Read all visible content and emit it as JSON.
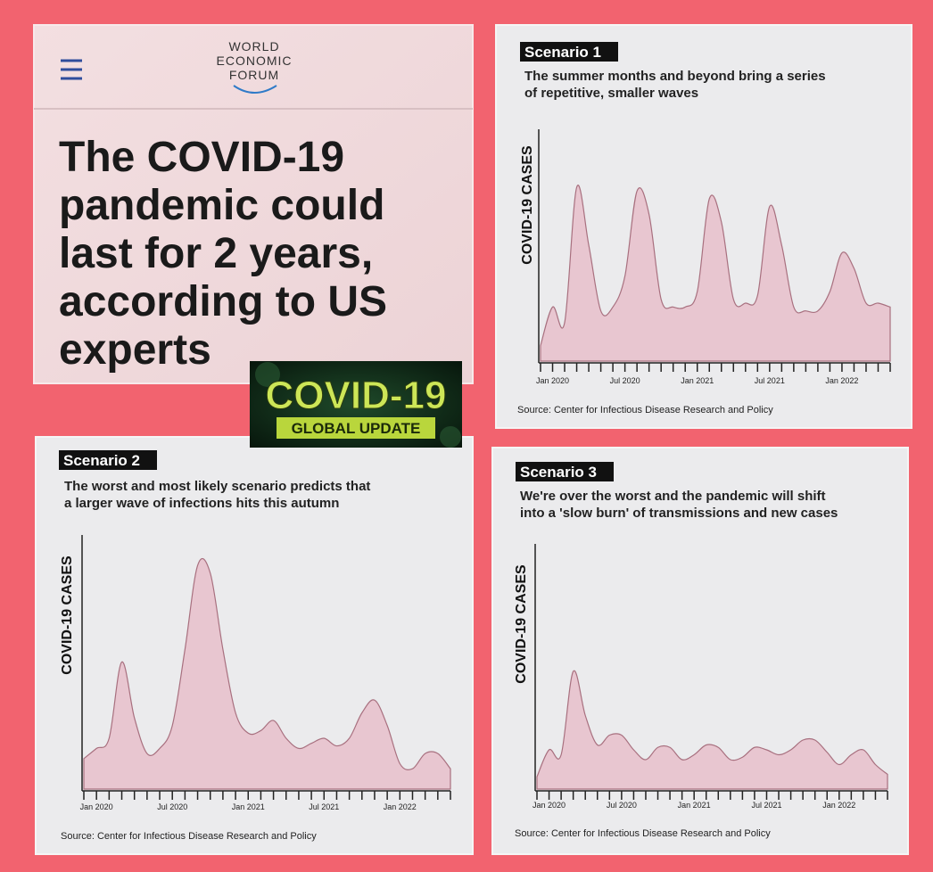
{
  "header": {
    "logo": [
      "WORLD",
      "ECONOMIC",
      "FORUM"
    ],
    "headline": [
      "The COVID-19",
      "pandemic could",
      "last for 2 years,",
      "according to US",
      "experts"
    ]
  },
  "badge": {
    "title": "COVID-19",
    "subtitle": "GLOBAL UPDATE"
  },
  "chart_data": [
    {
      "type": "area",
      "title": "Scenario 1",
      "subtitle": [
        "The summer months and beyond bring a series",
        "of repetitive, smaller waves"
      ],
      "y_label": "COVID-19 CASES",
      "source": "Source: Center for Infectious Disease Research and Policy",
      "categories": [
        null,
        "Jan 2020",
        null,
        null,
        null,
        null,
        null,
        "Jul 2020",
        null,
        null,
        null,
        null,
        null,
        "Jan 2021",
        null,
        null,
        null,
        null,
        null,
        "Jul 2021",
        null,
        null,
        null,
        null,
        null,
        "Jan 2022",
        null,
        null,
        null,
        null
      ],
      "values": [
        4,
        14,
        10,
        45,
        30,
        13,
        14,
        22,
        44,
        38,
        16,
        14,
        14,
        18,
        42,
        36,
        16,
        15,
        17,
        40,
        30,
        14,
        13,
        13,
        18,
        28,
        24,
        15,
        15,
        14
      ],
      "color": "#e8c6d0",
      "line_color": "#a8707f",
      "ylim": [
        0,
        60
      ]
    },
    {
      "type": "area",
      "title": "Scenario 2",
      "subtitle": [
        "The worst and most likely scenario predicts that",
        "a larger wave of infections hits this autumn"
      ],
      "y_label": "COVID-19 CASES",
      "source": "Source: Center for Infectious Disease Research and Policy",
      "categories": [
        null,
        "Jan 2020",
        null,
        null,
        null,
        null,
        null,
        "Jul 2020",
        null,
        null,
        null,
        null,
        null,
        "Jan 2021",
        null,
        null,
        null,
        null,
        null,
        "Jul 2021",
        null,
        null,
        null,
        null,
        null,
        "Jan 2022",
        null,
        null,
        null,
        null
      ],
      "values": [
        12,
        16,
        20,
        50,
        28,
        14,
        16,
        25,
        55,
        88,
        85,
        55,
        30,
        22,
        23,
        27,
        20,
        16,
        18,
        20,
        17,
        20,
        30,
        35,
        25,
        10,
        8,
        14,
        14,
        8
      ],
      "color": "#e8c6d0",
      "line_color": "#a8707f",
      "ylim": [
        0,
        100
      ]
    },
    {
      "type": "area",
      "title": "Scenario 3",
      "subtitle": [
        "We're over the worst and the pandemic will shift",
        "into a 'slow burn' of transmissions and new cases"
      ],
      "y_label": "COVID-19 CASES",
      "source": "Source: Center for Infectious Disease Research and Policy",
      "categories": [
        null,
        "Jan 2020",
        null,
        null,
        null,
        null,
        null,
        "Jul 2020",
        null,
        null,
        null,
        null,
        null,
        "Jan 2021",
        null,
        null,
        null,
        null,
        null,
        "Jul 2021",
        null,
        null,
        null,
        null,
        null,
        "Jan 2022",
        null,
        null,
        null,
        null
      ],
      "values": [
        5,
        16,
        14,
        48,
        30,
        18,
        22,
        22,
        16,
        12,
        17,
        17,
        12,
        14,
        18,
        17,
        12,
        13,
        17,
        16,
        14,
        16,
        20,
        20,
        15,
        10,
        14,
        16,
        10,
        6
      ],
      "color": "#e8c6d0",
      "line_color": "#a8707f",
      "ylim": [
        0,
        100
      ]
    }
  ]
}
